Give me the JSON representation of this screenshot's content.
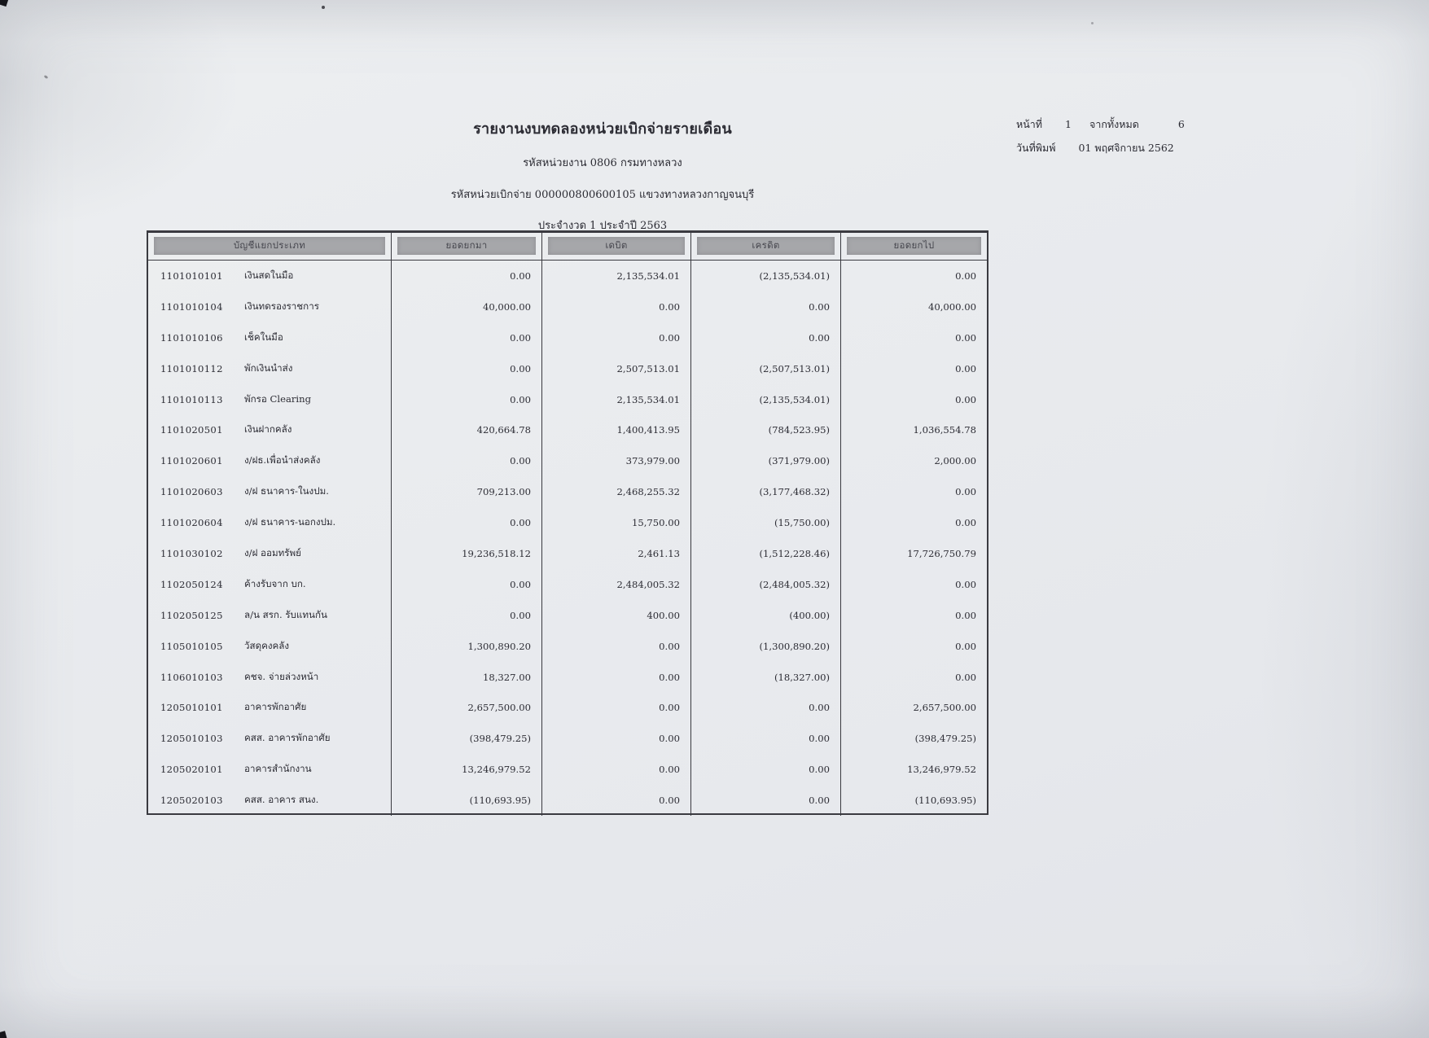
{
  "header": {
    "title": "รายงานงบทดลองหน่วยเบิกจ่ายรายเดือน",
    "agency_line": "รหัสหน่วยงาน 0806 กรมทางหลวง",
    "unit_line": "รหัสหน่วยเบิกจ่าย 000000800600105 แขวงทางหลวงกาญจนบุรี",
    "period_line": "ประจำงวด 1 ประจำปี 2563",
    "page_label": "หน้าที่",
    "page_number": "1",
    "total_label": "จากทั้งหมด",
    "total_pages": "6",
    "print_date_label": "วันที่พิมพ์",
    "print_date": "01 พฤศจิกายน 2562"
  },
  "table": {
    "columns": [
      "บัญชีแยกประเภท",
      "ยอดยกมา",
      "เดบิต",
      "เครดิต",
      "ยอดยกไป"
    ],
    "rows": [
      {
        "code": "1101010101",
        "name": "เงินสดในมือ",
        "broughtForward": "0.00",
        "debit": "2,135,534.01",
        "credit": "(2,135,534.01)",
        "carriedForward": "0.00"
      },
      {
        "code": "1101010104",
        "name": "เงินทดรองราชการ",
        "broughtForward": "40,000.00",
        "debit": "0.00",
        "credit": "0.00",
        "carriedForward": "40,000.00"
      },
      {
        "code": "1101010106",
        "name": "เช็คในมือ",
        "broughtForward": "0.00",
        "debit": "0.00",
        "credit": "0.00",
        "carriedForward": "0.00"
      },
      {
        "code": "1101010112",
        "name": "พักเงินนำส่ง",
        "broughtForward": "0.00",
        "debit": "2,507,513.01",
        "credit": "(2,507,513.01)",
        "carriedForward": "0.00"
      },
      {
        "code": "1101010113",
        "name": "พักรอ Clearing",
        "broughtForward": "0.00",
        "debit": "2,135,534.01",
        "credit": "(2,135,534.01)",
        "carriedForward": "0.00"
      },
      {
        "code": "1101020501",
        "name": "เงินฝากคลัง",
        "broughtForward": "420,664.78",
        "debit": "1,400,413.95",
        "credit": "(784,523.95)",
        "carriedForward": "1,036,554.78"
      },
      {
        "code": "1101020601",
        "name": "ง/ฝธ.เพื่อนำส่งคลัง",
        "broughtForward": "0.00",
        "debit": "373,979.00",
        "credit": "(371,979.00)",
        "carriedForward": "2,000.00"
      },
      {
        "code": "1101020603",
        "name": "ง/ฝ ธนาคาร-ในงปม.",
        "broughtForward": "709,213.00",
        "debit": "2,468,255.32",
        "credit": "(3,177,468.32)",
        "carriedForward": "0.00"
      },
      {
        "code": "1101020604",
        "name": "ง/ฝ ธนาคาร-นอกงปม.",
        "broughtForward": "0.00",
        "debit": "15,750.00",
        "credit": "(15,750.00)",
        "carriedForward": "0.00"
      },
      {
        "code": "1101030102",
        "name": "ง/ฝ ออมทรัพย์",
        "broughtForward": "19,236,518.12",
        "debit": "2,461.13",
        "credit": "(1,512,228.46)",
        "carriedForward": "17,726,750.79"
      },
      {
        "code": "1102050124",
        "name": "ค้างรับจาก บก.",
        "broughtForward": "0.00",
        "debit": "2,484,005.32",
        "credit": "(2,484,005.32)",
        "carriedForward": "0.00"
      },
      {
        "code": "1102050125",
        "name": "ล/น สรก. รับแทนกัน",
        "broughtForward": "0.00",
        "debit": "400.00",
        "credit": "(400.00)",
        "carriedForward": "0.00"
      },
      {
        "code": "1105010105",
        "name": "วัสดุคงคลัง",
        "broughtForward": "1,300,890.20",
        "debit": "0.00",
        "credit": "(1,300,890.20)",
        "carriedForward": "0.00"
      },
      {
        "code": "1106010103",
        "name": "คชจ. จ่ายล่วงหน้า",
        "broughtForward": "18,327.00",
        "debit": "0.00",
        "credit": "(18,327.00)",
        "carriedForward": "0.00"
      },
      {
        "code": "1205010101",
        "name": "อาคารพักอาศัย",
        "broughtForward": "2,657,500.00",
        "debit": "0.00",
        "credit": "0.00",
        "carriedForward": "2,657,500.00"
      },
      {
        "code": "1205010103",
        "name": "คสส. อาคารพักอาศัย",
        "broughtForward": "(398,479.25)",
        "debit": "0.00",
        "credit": "0.00",
        "carriedForward": "(398,479.25)"
      },
      {
        "code": "1205020101",
        "name": "อาคารสำนักงาน",
        "broughtForward": "13,246,979.52",
        "debit": "0.00",
        "credit": "0.00",
        "carriedForward": "13,246,979.52"
      },
      {
        "code": "1205020103",
        "name": "คสส. อาคาร สนง.",
        "broughtForward": "(110,693.95)",
        "debit": "0.00",
        "credit": "0.00",
        "carriedForward": "(110,693.95)"
      }
    ]
  }
}
